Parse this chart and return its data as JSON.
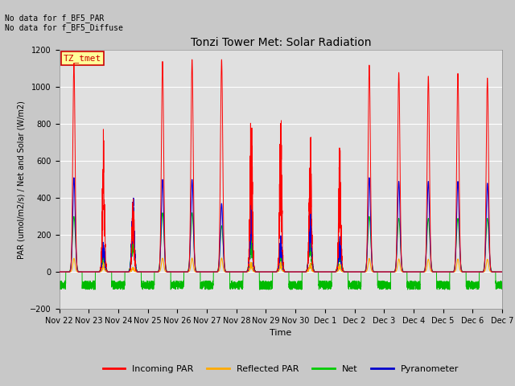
{
  "title": "Tonzi Tower Met: Solar Radiation",
  "xlabel": "Time",
  "ylabel": "PAR (umol/m2/s) / Net and Solar (W/m2)",
  "ylim": [
    -200,
    1200
  ],
  "yticks": [
    -200,
    0,
    200,
    400,
    600,
    800,
    1000,
    1200
  ],
  "text_lines": [
    "No data for f_BF5_PAR",
    "No data for f_BF5_Diffuse"
  ],
  "annotation_box": "TZ_tmet",
  "annotation_box_color": "#ffff99",
  "annotation_box_border": "#cc0000",
  "xtick_labels": [
    "Nov 22",
    "Nov 23",
    "Nov 24",
    "Nov 25",
    "Nov 26",
    "Nov 27",
    "Nov 28",
    "Nov 29",
    "Nov 30",
    "Dec 1",
    "Dec 2",
    "Dec 3",
    "Dec 4",
    "Dec 5",
    "Dec 6",
    "Dec 7"
  ],
  "legend_entries": [
    "Incoming PAR",
    "Reflected PAR",
    "Net",
    "Pyranometer"
  ],
  "legend_colors": [
    "#ff0000",
    "#ffaa00",
    "#00cc00",
    "#0000cc"
  ],
  "line_colors": {
    "incoming": "#ff0000",
    "reflected": "#ffaa00",
    "net": "#00bb00",
    "pyranometer": "#0000dd"
  },
  "fig_facecolor": "#c8c8c8",
  "ax_facecolor": "#e0e0e0",
  "n_days": 15,
  "n_points_per_day": 288
}
